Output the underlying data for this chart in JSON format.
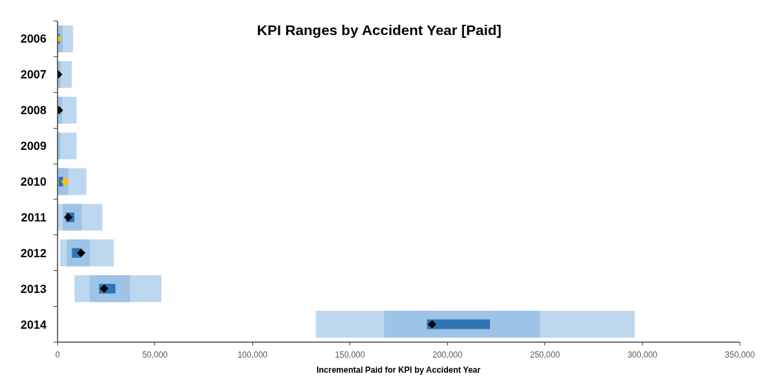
{
  "chart_data": {
    "type": "bar",
    "orientation": "horizontal",
    "title": "KPI Ranges by Accident Year [Paid]",
    "xlabel": "Incremental Paid for KPI by Accident Year",
    "categories": [
      "2006",
      "2007",
      "2008",
      "2009",
      "2010",
      "2011",
      "2012",
      "2013",
      "2014"
    ],
    "series": [
      {
        "color": "#bdd7ee",
        "base": [
          0,
          0,
          0,
          0,
          0,
          0,
          1300,
          8700,
          132500
        ],
        "values": [
          7900,
          7300,
          9800,
          9800,
          14800,
          23000,
          27500,
          44600,
          163500
        ]
      },
      {
        "color": "#9dc3e6",
        "base": [
          0,
          0,
          0,
          0,
          0,
          2700,
          4800,
          16400,
          167500
        ],
        "values": [
          2700,
          1600,
          2400,
          1500,
          5500,
          9700,
          11800,
          20800,
          80000
        ]
      },
      {
        "color": "#2e75b6",
        "base": [
          0,
          null,
          null,
          null,
          600,
          4200,
          7400,
          21300,
          189500
        ],
        "values": [
          1200,
          null,
          null,
          null,
          2200,
          4400,
          4700,
          8400,
          32300
        ]
      },
      {
        "type": "scatter",
        "colors": [
          "#ffc000",
          "#000000",
          "#000000",
          "#000000",
          "#ffc000",
          "#000000",
          "#000000",
          "#000000",
          "#000000"
        ],
        "values": [
          0,
          300,
          700,
          null,
          4000,
          5500,
          12100,
          23900,
          192100
        ]
      }
    ],
    "marker": "diamond",
    "xlim": [
      0,
      350000
    ],
    "xticks": [
      0,
      {
        "value": 50000,
        "label": "50,000"
      },
      {
        "value": 100000,
        "label": "100,000"
      },
      {
        "value": 150000,
        "label": "150,000"
      },
      {
        "value": 200000,
        "label": "200,000"
      },
      {
        "value": 250000,
        "label": "250,000"
      },
      {
        "value": 300000,
        "label": "300,000"
      },
      {
        "value": 350000,
        "label": "350,000"
      }
    ],
    "grid": false
  }
}
